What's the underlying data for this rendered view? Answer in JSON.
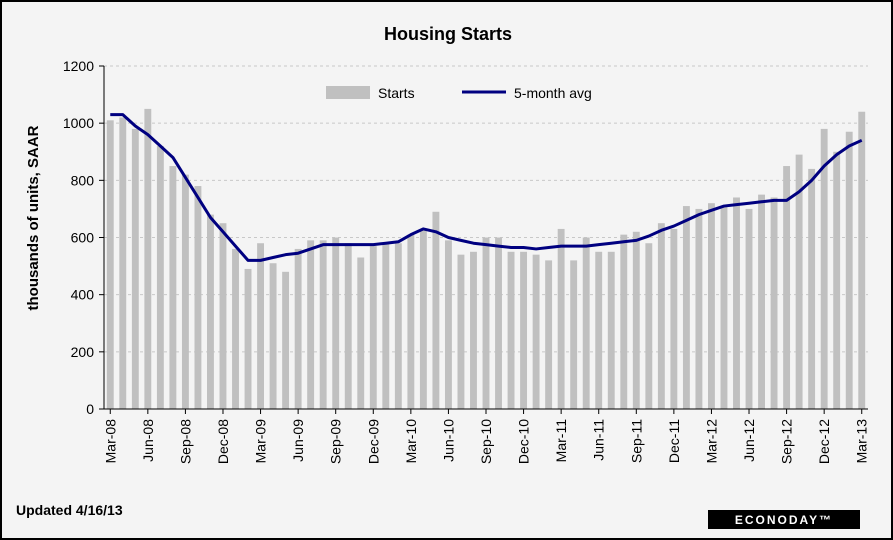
{
  "chart_data": {
    "type": "bar",
    "title": "Housing Starts",
    "ylabel": "thousands of units, SAAR",
    "ylim": [
      0,
      1200
    ],
    "yticks": [
      "0",
      "200",
      "400",
      "600",
      "800",
      "1000",
      "1200"
    ],
    "grid": true,
    "legend_position": "top-center",
    "x_tick_labels": [
      "Mar-08",
      "Jun-08",
      "Sep-08",
      "Dec-08",
      "Mar-09",
      "Jun-09",
      "Sep-09",
      "Dec-09",
      "Mar-10",
      "Jun-10",
      "Sep-10",
      "Dec-10",
      "Mar-11",
      "Jun-11",
      "Sep-11",
      "Dec-11",
      "Mar-12",
      "Jun-12",
      "Sep-12",
      "Dec-12",
      "Mar-13"
    ],
    "categories": [
      "Mar-08",
      "Apr-08",
      "May-08",
      "Jun-08",
      "Jul-08",
      "Aug-08",
      "Sep-08",
      "Oct-08",
      "Nov-08",
      "Dec-08",
      "Jan-09",
      "Feb-09",
      "Mar-09",
      "Apr-09",
      "May-09",
      "Jun-09",
      "Jul-09",
      "Aug-09",
      "Sep-09",
      "Oct-09",
      "Nov-09",
      "Dec-09",
      "Jan-10",
      "Feb-10",
      "Mar-10",
      "Apr-10",
      "May-10",
      "Jun-10",
      "Jul-10",
      "Aug-10",
      "Sep-10",
      "Oct-10",
      "Nov-10",
      "Dec-10",
      "Jan-11",
      "Feb-11",
      "Mar-11",
      "Apr-11",
      "May-11",
      "Jun-11",
      "Jul-11",
      "Aug-11",
      "Sep-11",
      "Oct-11",
      "Nov-11",
      "Dec-11",
      "Jan-12",
      "Feb-12",
      "Mar-12",
      "Apr-12",
      "May-12",
      "Jun-12",
      "Jul-12",
      "Aug-12",
      "Sep-12",
      "Oct-12",
      "Nov-12",
      "Dec-12",
      "Jan-13",
      "Feb-13",
      "Mar-13"
    ],
    "series": [
      {
        "name": "Starts",
        "kind": "bar",
        "color": "#c0c0c0",
        "values": [
          1010,
          1020,
          980,
          1050,
          920,
          850,
          820,
          780,
          680,
          650,
          560,
          490,
          580,
          510,
          480,
          560,
          590,
          590,
          600,
          580,
          530,
          570,
          580,
          580,
          610,
          630,
          690,
          590,
          540,
          550,
          600,
          600,
          550,
          550,
          540,
          520,
          630,
          520,
          600,
          550,
          550,
          610,
          620,
          580,
          650,
          630,
          710,
          700,
          720,
          710,
          740,
          700,
          750,
          740,
          850,
          890,
          840,
          980,
          900,
          970,
          1040
        ]
      },
      {
        "name": "5-month avg",
        "kind": "line",
        "color": "#000080",
        "values": [
          1030,
          1030,
          990,
          960,
          920,
          880,
          810,
          740,
          670,
          620,
          570,
          520,
          520,
          530,
          540,
          545,
          560,
          575,
          575,
          575,
          575,
          575,
          580,
          585,
          610,
          630,
          620,
          600,
          590,
          580,
          575,
          570,
          565,
          565,
          560,
          565,
          570,
          570,
          570,
          575,
          580,
          585,
          590,
          605,
          625,
          640,
          660,
          680,
          695,
          710,
          715,
          720,
          725,
          730,
          730,
          760,
          800,
          850,
          890,
          920,
          940
        ]
      }
    ]
  },
  "footer": {
    "updated": "Updated 4/16/13",
    "brand": "ECONODAY™"
  }
}
